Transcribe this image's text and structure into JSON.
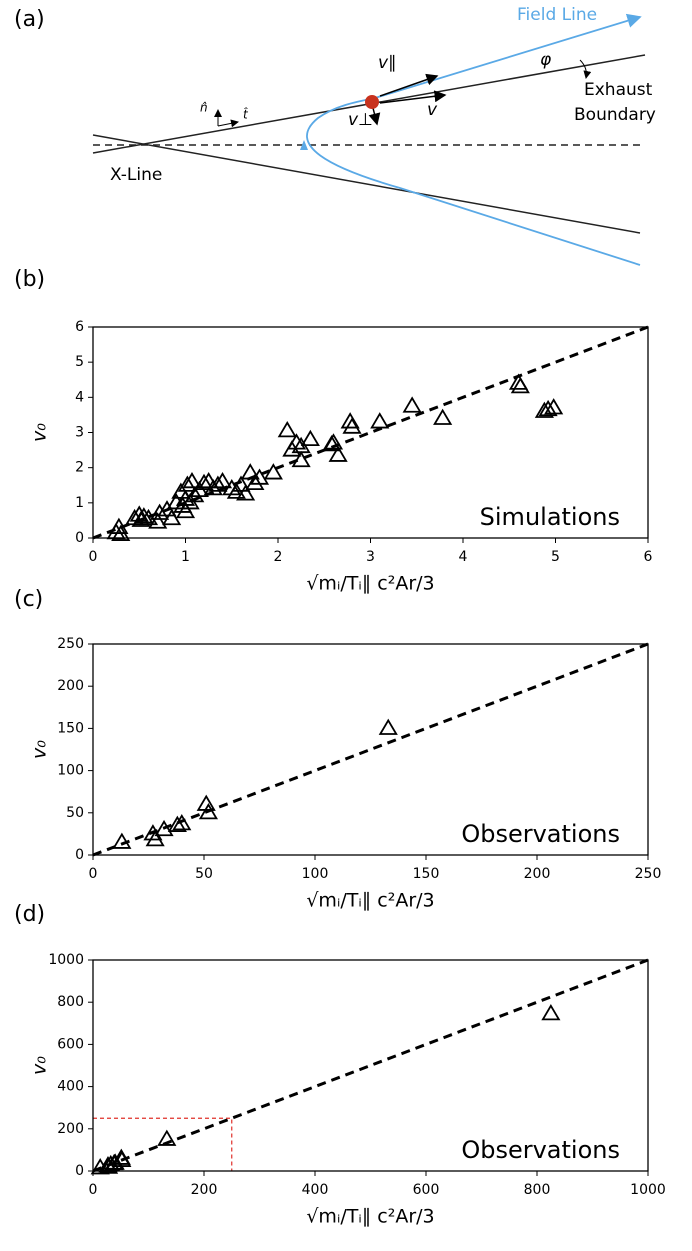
{
  "diagram": {
    "panel_label": "(a)",
    "field_line": "Field Line",
    "phi": "φ",
    "exhaust_boundary": [
      "Exhaust",
      "Boundary"
    ],
    "v_par": "v∥",
    "v": "v",
    "v_perp": "v⊥",
    "n_hat": "n̂",
    "t_hat": "t̂",
    "x_line": "X-Line"
  },
  "chart_data": [
    {
      "type": "scatter",
      "panel_label": "(b)",
      "annotation": "Simulations",
      "xlabel": "√mᵢ/Tᵢ∥  c²Ar/3",
      "ylabel": "v₀",
      "xlim": [
        0,
        6
      ],
      "ylim": [
        0,
        6
      ],
      "xticks": [
        0,
        1,
        2,
        3,
        4,
        5,
        6
      ],
      "yticks": [
        0,
        1,
        2,
        3,
        4,
        5,
        6
      ],
      "series": [
        {
          "style": "triangle",
          "color": "#000000",
          "x": [
            0.25,
            0.28,
            0.3,
            0.45,
            0.5,
            0.52,
            0.55,
            0.6,
            0.7,
            0.72,
            0.8,
            0.85,
            0.9,
            0.95,
            0.97,
            1.0,
            1.0,
            1.02,
            1.05,
            1.07,
            1.1,
            1.15,
            1.2,
            1.25,
            1.3,
            1.35,
            1.4,
            1.5,
            1.55,
            1.6,
            1.65,
            1.7,
            1.75,
            1.8,
            1.95,
            2.1,
            2.15,
            2.2,
            2.25,
            2.25,
            2.35,
            2.58,
            2.6,
            2.65,
            2.78,
            2.8,
            3.1,
            3.45,
            3.78,
            4.6,
            4.62,
            4.88,
            4.92,
            4.98
          ],
          "values": [
            0.15,
            0.3,
            0.1,
            0.55,
            0.65,
            0.5,
            0.6,
            0.55,
            0.45,
            0.7,
            0.8,
            0.55,
            1.0,
            1.3,
            0.9,
            1.1,
            0.75,
            1.5,
            1.0,
            1.6,
            1.2,
            1.35,
            1.55,
            1.6,
            1.4,
            1.5,
            1.6,
            1.4,
            1.3,
            1.5,
            1.25,
            1.85,
            1.55,
            1.7,
            1.85,
            3.05,
            2.5,
            2.7,
            2.2,
            2.6,
            2.8,
            2.65,
            2.7,
            2.35,
            3.3,
            3.15,
            3.3,
            3.75,
            3.4,
            4.4,
            4.3,
            3.6,
            3.65,
            3.7
          ]
        },
        {
          "style": "dashed",
          "color": "#000000",
          "x": [
            0,
            6
          ],
          "values": [
            0,
            6
          ]
        }
      ]
    },
    {
      "type": "scatter",
      "panel_label": "(c)",
      "annotation": "Observations",
      "xlabel": "√mᵢ/Tᵢ∥  c²Ar/3",
      "ylabel": "v₀",
      "xlim": [
        0,
        250
      ],
      "ylim": [
        0,
        250
      ],
      "xticks": [
        0,
        50,
        100,
        150,
        200,
        250
      ],
      "yticks": [
        0,
        50,
        100,
        150,
        200,
        250
      ],
      "series": [
        {
          "style": "triangle",
          "color": "#000000",
          "x": [
            13,
            27,
            28,
            32,
            38,
            40,
            51,
            52,
            133
          ],
          "values": [
            15,
            25,
            18,
            30,
            35,
            37,
            60,
            50,
            150
          ]
        },
        {
          "style": "dashed",
          "color": "#000000",
          "x": [
            0,
            250
          ],
          "values": [
            0,
            250
          ]
        }
      ]
    },
    {
      "type": "scatter",
      "panel_label": "(d)",
      "annotation": "Observations",
      "xlabel": "√mᵢ/Tᵢ∥  c²Ar/3",
      "ylabel": "v₀",
      "xlim": [
        0,
        1000
      ],
      "ylim": [
        0,
        1000
      ],
      "xticks": [
        0,
        200,
        400,
        600,
        800,
        1000
      ],
      "yticks": [
        0,
        200,
        400,
        600,
        800,
        1000
      ],
      "series": [
        {
          "style": "triangle",
          "color": "#000000",
          "x": [
            13,
            27,
            28,
            32,
            38,
            40,
            51,
            52,
            133,
            825
          ],
          "values": [
            15,
            25,
            18,
            30,
            35,
            37,
            60,
            50,
            150,
            745
          ]
        },
        {
          "style": "dashed",
          "color": "#000000",
          "x": [
            0,
            1000
          ],
          "values": [
            0,
            1000
          ]
        },
        {
          "style": "thin-dashed",
          "color": "#e0302a",
          "x": [
            0,
            250,
            250
          ],
          "values": [
            250,
            250,
            0
          ]
        }
      ]
    }
  ]
}
